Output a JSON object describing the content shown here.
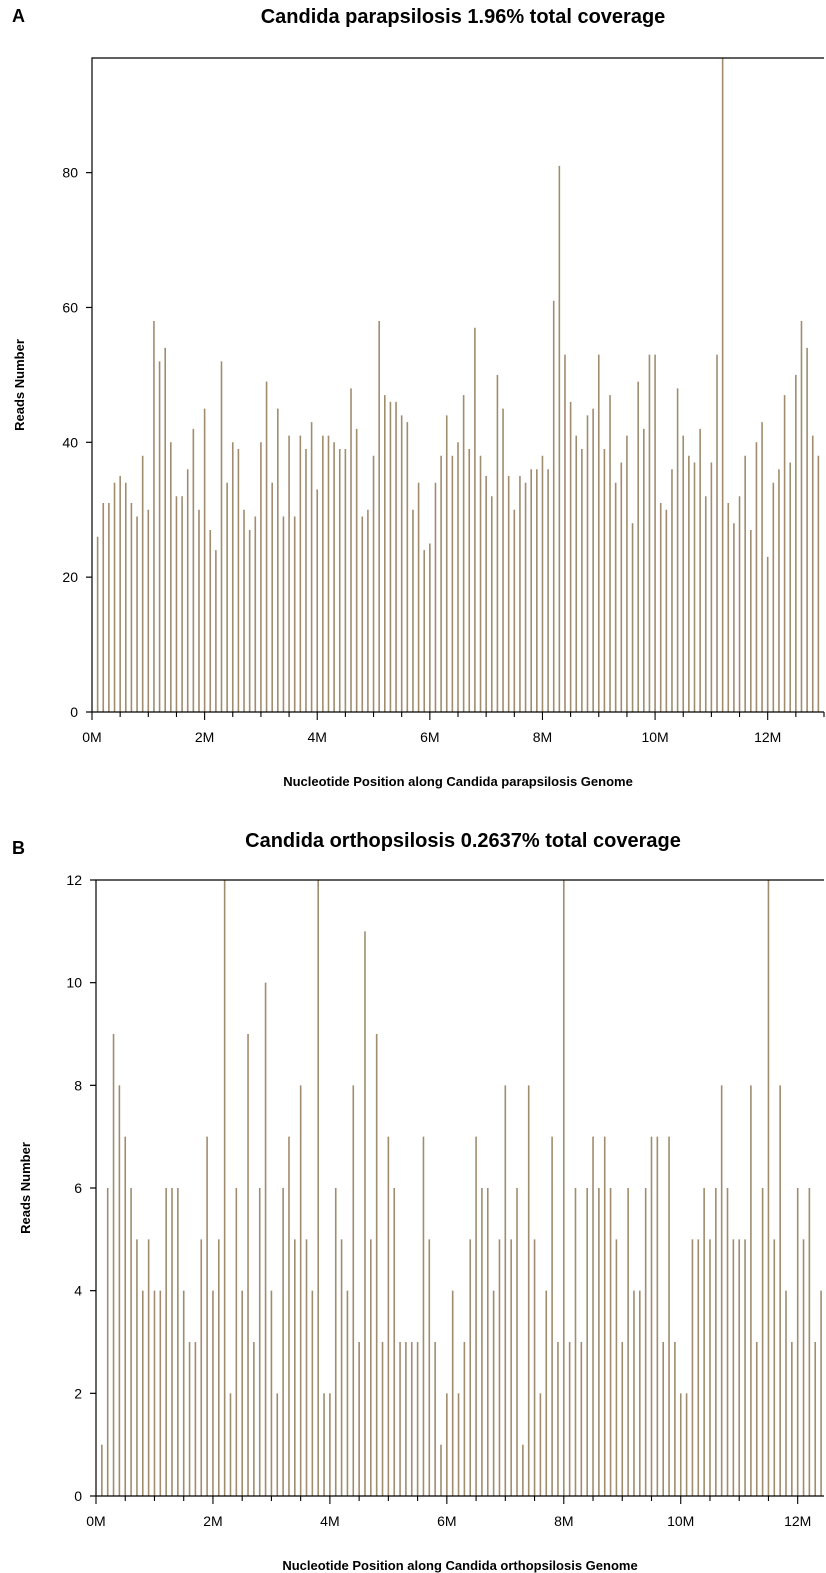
{
  "chart_data": [
    {
      "panel_label": "A",
      "type": "bar",
      "title": "Candida parapsilosis 1.96% total coverage",
      "xlabel": "Nucleotide Position along  Candida parapsilosis  Genome",
      "ylabel": "Reads Number",
      "xlim": [
        0,
        13.0
      ],
      "ylim": [
        0,
        97
      ],
      "x_ticks": [
        0,
        2,
        4,
        6,
        8,
        10,
        12
      ],
      "x_tick_labels": [
        "0M",
        "2M",
        "4M",
        "6M",
        "8M",
        "10M",
        "12M"
      ],
      "y_ticks": [
        0,
        20,
        40,
        60,
        80
      ],
      "y_tick_labels": [
        "0",
        "20",
        "40",
        "60",
        "80"
      ],
      "x_unit": "M",
      "x_step": 0.1,
      "x_start": 0.1,
      "bar_color": "#a08c6e",
      "values": [
        26,
        31,
        31,
        34,
        35,
        34,
        31,
        29,
        38,
        30,
        58,
        52,
        54,
        40,
        32,
        32,
        36,
        42,
        30,
        45,
        27,
        24,
        52,
        34,
        40,
        39,
        30,
        27,
        29,
        40,
        49,
        34,
        45,
        29,
        41,
        29,
        41,
        39,
        43,
        33,
        41,
        41,
        40,
        39,
        39,
        48,
        42,
        29,
        30,
        38,
        58,
        47,
        46,
        46,
        44,
        43,
        30,
        34,
        24,
        25,
        34,
        38,
        44,
        38,
        40,
        47,
        39,
        57,
        38,
        35,
        32,
        50,
        45,
        35,
        30,
        35,
        34,
        36,
        36,
        38,
        36,
        61,
        81,
        53,
        46,
        41,
        39,
        44,
        45,
        53,
        39,
        47,
        34,
        37,
        41,
        28,
        49,
        42,
        53,
        53,
        31,
        30,
        36,
        48,
        41,
        38,
        37,
        42,
        32,
        37,
        53,
        97,
        31,
        28,
        32,
        38,
        27,
        40,
        43,
        23,
        34,
        36,
        47,
        37,
        50,
        58,
        54,
        41,
        38
      ]
    },
    {
      "panel_label": "B",
      "type": "bar",
      "title": "Candida orthopsilosis 0.2637% total coverage",
      "xlabel": "Nucleotide Position along  Candida orthopsilosis  Genome",
      "ylabel": "Reads Number",
      "xlim": [
        0,
        12.45
      ],
      "ylim": [
        0,
        12
      ],
      "x_ticks": [
        0,
        2,
        4,
        6,
        8,
        10,
        12
      ],
      "x_tick_labels": [
        "0M",
        "2M",
        "4M",
        "6M",
        "8M",
        "10M",
        "12M"
      ],
      "y_ticks": [
        0,
        2,
        4,
        6,
        8,
        10,
        12
      ],
      "y_tick_labels": [
        "0",
        "2",
        "4",
        "6",
        "8",
        "10",
        "12"
      ],
      "x_unit": "M",
      "x_step": 0.1,
      "x_start": 0.1,
      "bar_color": "#a08c6e",
      "values": [
        1,
        6,
        9,
        8,
        7,
        6,
        5,
        4,
        5,
        4,
        4,
        6,
        6,
        6,
        4,
        3,
        3,
        5,
        7,
        4,
        5,
        12,
        2,
        6,
        4,
        9,
        3,
        6,
        10,
        4,
        2,
        6,
        7,
        5,
        8,
        5,
        4,
        12,
        2,
        2,
        6,
        5,
        4,
        8,
        3,
        11,
        5,
        9,
        3,
        7,
        6,
        3,
        3,
        3,
        3,
        7,
        5,
        3,
        1,
        2,
        4,
        2,
        3,
        5,
        7,
        6,
        6,
        4,
        5,
        8,
        5,
        6,
        1,
        8,
        5,
        2,
        4,
        7,
        3,
        12,
        3,
        6,
        3,
        6,
        7,
        6,
        7,
        6,
        5,
        3,
        6,
        4,
        4,
        6,
        7,
        7,
        3,
        7,
        3,
        2,
        2,
        5,
        5,
        6,
        5,
        6,
        8,
        6,
        5,
        5,
        5,
        8,
        3,
        6,
        12,
        5,
        8,
        4,
        3,
        6,
        5,
        6,
        3,
        4,
        8
      ]
    }
  ]
}
